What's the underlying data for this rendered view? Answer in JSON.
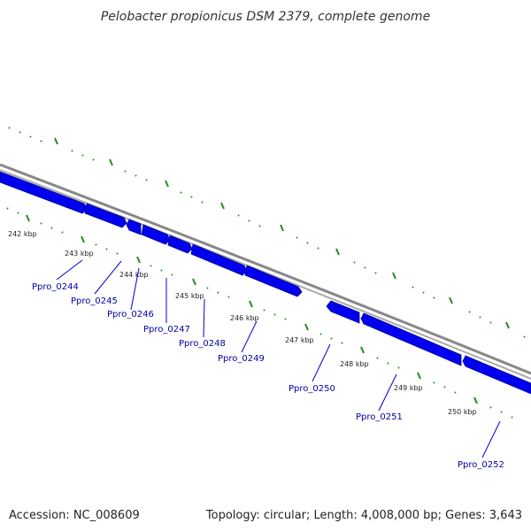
{
  "title": "Pelobacter propionicus DSM 2379, complete genome",
  "accession": "Accession: NC_008609",
  "topology": "Topology: circular; Length: 4,008,000 bp; Genes: 3,643",
  "colors": {
    "backbone": "#888888",
    "gene": "#0000ee",
    "tick": "#228b22",
    "label": "#0000aa"
  },
  "kbp_ticks": [
    "242 kbp",
    "243 kbp",
    "244 kbp",
    "245 kbp",
    "246 kbp",
    "247 kbp",
    "248 kbp",
    "249 kbp",
    "250 kbp"
  ],
  "genes": [
    "Ppro_0244",
    "Ppro_0245",
    "Ppro_0246",
    "Ppro_0247",
    "Ppro_0248",
    "Ppro_0249",
    "Ppro_0250",
    "Ppro_0251",
    "Ppro_0252"
  ]
}
